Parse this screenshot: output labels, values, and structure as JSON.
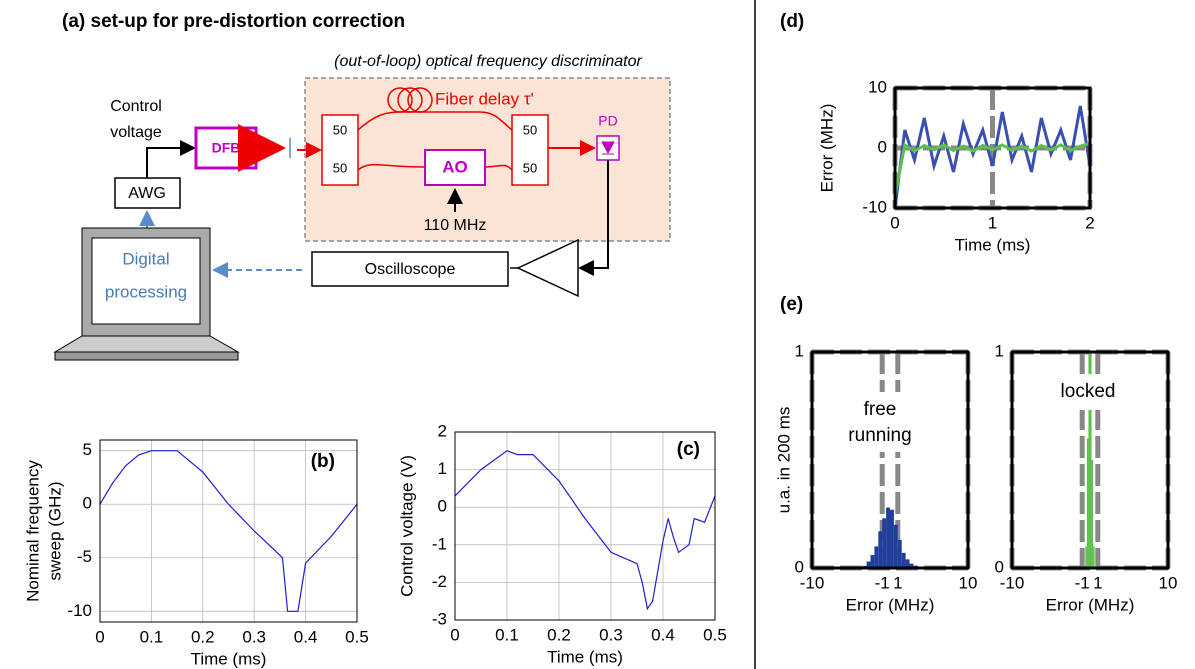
{
  "diagram": {
    "title": "(a) set-up for pre-distortion correction",
    "box_label": "(out-of-loop) optical frequency discriminator",
    "control_voltage": [
      "Control",
      "voltage"
    ],
    "dfb": "DFB",
    "awg": "AWG",
    "fiber_delay": "Fiber delay τ'",
    "couplers": [
      "50",
      "50",
      "50",
      "50"
    ],
    "ao": "AO",
    "ao_freq": "110 MHz",
    "pd": "PD",
    "oscilloscope": "Oscilloscope",
    "computer": [
      "Digital",
      "processing"
    ]
  },
  "chart_data": [
    {
      "type": "line",
      "title": "(b)",
      "xlabel": "Time (ms)",
      "ylabel": [
        "Nominal frequency",
        "sweep (GHz)"
      ],
      "x": [
        0,
        0.025,
        0.05,
        0.075,
        0.1,
        0.15,
        0.2,
        0.25,
        0.3,
        0.34,
        0.355,
        0.365,
        0.385,
        0.4,
        0.45,
        0.5
      ],
      "series": [
        {
          "color": "#1f1fd0",
          "values": [
            0,
            2,
            3.6,
            4.6,
            5,
            5,
            3,
            0,
            -2.5,
            -4.3,
            -5,
            -10,
            -10,
            -5.5,
            -3,
            0
          ]
        }
      ],
      "xlim": [
        0,
        0.5
      ],
      "xticks": [
        0,
        0.1,
        0.2,
        0.3,
        0.4,
        0.5
      ],
      "ylim": [
        -11,
        6
      ],
      "yticks": [
        5,
        0,
        -5,
        -10
      ],
      "grid": true
    },
    {
      "type": "line",
      "title": "(c)",
      "xlabel": "Time (ms)",
      "ylabel": [
        "Control voltage (V)"
      ],
      "x": [
        0,
        0.05,
        0.1,
        0.12,
        0.15,
        0.2,
        0.25,
        0.3,
        0.35,
        0.36,
        0.37,
        0.38,
        0.4,
        0.41,
        0.42,
        0.43,
        0.45,
        0.46,
        0.48,
        0.5
      ],
      "series": [
        {
          "color": "#1f1fd0",
          "values": [
            0.3,
            1,
            1.5,
            1.4,
            1.4,
            0.7,
            -0.3,
            -1.2,
            -1.5,
            -2,
            -2.7,
            -2.5,
            -0.9,
            -0.3,
            -0.8,
            -1.2,
            -1,
            -0.3,
            -0.4,
            0.3
          ]
        }
      ],
      "xlim": [
        0,
        0.5
      ],
      "xticks": [
        0,
        0.1,
        0.2,
        0.3,
        0.4,
        0.5
      ],
      "ylim": [
        -3,
        2
      ],
      "yticks": [
        2,
        1,
        0,
        -1,
        -2,
        -3
      ],
      "grid": true
    },
    {
      "type": "line",
      "title": "(d)",
      "xlabel": "Time (ms)",
      "ylabel": [
        "Error (MHz)"
      ],
      "x": [
        0,
        0.1,
        0.2,
        0.3,
        0.4,
        0.5,
        0.6,
        0.7,
        0.8,
        0.9,
        1,
        1.1,
        1.2,
        1.3,
        1.4,
        1.5,
        1.6,
        1.7,
        1.8,
        1.9,
        2
      ],
      "series": [
        {
          "color": "#3a4fb0",
          "values": [
            -10,
            3,
            -2,
            5,
            -3,
            2,
            -4,
            4,
            -1,
            3,
            -3,
            6,
            -2,
            2,
            -4,
            5,
            -1,
            3,
            -2,
            7,
            -3
          ]
        },
        {
          "color": "#5cc04a",
          "values": [
            -8,
            0.5,
            -0.5,
            0.4,
            -0.3,
            0.5,
            -0.4,
            0.3,
            -0.5,
            0.4,
            -0.3,
            0.5,
            -0.4,
            0.3,
            -0.5,
            0.4,
            -0.3,
            0.5,
            -0.4,
            0.3,
            0.8
          ]
        }
      ],
      "xlim": [
        0,
        2
      ],
      "xticks": [
        0,
        1,
        2
      ],
      "ylim": [
        -10,
        10
      ],
      "yticks": [
        10,
        0,
        -10
      ],
      "grid": true
    },
    {
      "type": "histogram",
      "title": "(e)",
      "xlabel": "Error (MHz)",
      "ylabel": [
        "u.a. in 200 ms"
      ],
      "annotation": [
        "free",
        "running"
      ],
      "bins": [
        -4,
        -3.5,
        -3,
        -2.5,
        -2,
        -1.5,
        -1,
        -0.5,
        0,
        0.5,
        1,
        1.5,
        2,
        2.5,
        3,
        3.5,
        4
      ],
      "values": [
        0,
        0.01,
        0.03,
        0.06,
        0.1,
        0.17,
        0.23,
        0.28,
        0.27,
        0.2,
        0.13,
        0.07,
        0.04,
        0.02,
        0.01,
        0
      ],
      "color": "#1f3f9a",
      "xlim": [
        -10,
        10
      ],
      "xticks": [
        -10,
        -1,
        1,
        10
      ],
      "ylim": [
        0,
        1
      ],
      "yticks": [
        1,
        0
      ],
      "grid": true
    },
    {
      "type": "histogram",
      "xlabel": "Error (MHz)",
      "annotation": [
        "locked"
      ],
      "bins": [
        -0.6,
        -0.4,
        -0.2,
        0,
        0.2,
        0.4,
        0.6
      ],
      "values": [
        0.1,
        0.6,
        1,
        1,
        0.5,
        0.1
      ],
      "color": "#5cc04a",
      "xlim": [
        -10,
        10
      ],
      "xticks": [
        -10,
        -1,
        1,
        10
      ],
      "ylim": [
        0,
        1
      ],
      "yticks": [
        1,
        0
      ],
      "grid": true
    }
  ]
}
